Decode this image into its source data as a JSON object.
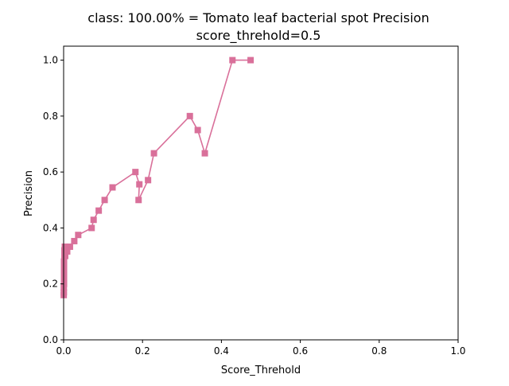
{
  "chart_data": {
    "type": "line",
    "title_line1": "class: 100.00% = Tomato leaf bacterial spot Precision",
    "title_line2": "score_threhold=0.5",
    "xlabel": "Score_Threhold",
    "ylabel": "Precision",
    "xlim": [
      0.0,
      1.0
    ],
    "ylim": [
      0.0,
      1.05
    ],
    "xticks": [
      0.0,
      0.2,
      0.4,
      0.6,
      0.8,
      1.0
    ],
    "yticks": [
      0.0,
      0.2,
      0.4,
      0.6,
      0.8,
      1.0
    ],
    "xtick_labels": [
      "0.0",
      "0.2",
      "0.4",
      "0.6",
      "0.8",
      "1.0"
    ],
    "ytick_labels": [
      "0.0",
      "0.2",
      "0.4",
      "0.6",
      "0.8",
      "1.0"
    ],
    "grid": false,
    "marker": "square",
    "color": "#d9709a",
    "series": [
      {
        "x": [
          0.474,
          0.428,
          0.358,
          0.34,
          0.32,
          0.229,
          0.214,
          0.19,
          0.192,
          0.182,
          0.124,
          0.104,
          0.089,
          0.076,
          0.071,
          0.037,
          0.027,
          0.016,
          0.009,
          0.004,
          0.003,
          0.002,
          0.002,
          0.001,
          0.001,
          0.001,
          0.001,
          0.001,
          0.0005,
          0.0005,
          0.0003
        ],
        "y": [
          1.0,
          1.0,
          0.667,
          0.75,
          0.8,
          0.667,
          0.571,
          0.5,
          0.556,
          0.6,
          0.545,
          0.5,
          0.462,
          0.429,
          0.4,
          0.375,
          0.353,
          0.333,
          0.316,
          0.3,
          0.333,
          0.32,
          0.3,
          0.28,
          0.26,
          0.24,
          0.22,
          0.2,
          0.185,
          0.17,
          0.16
        ]
      }
    ]
  }
}
